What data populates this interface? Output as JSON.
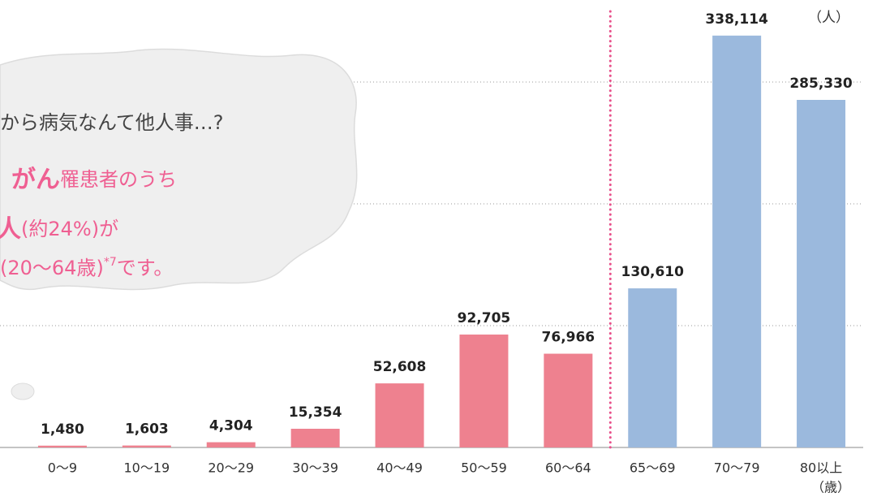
{
  "chart_data": {
    "type": "bar",
    "unit_label": "（人）",
    "x_unit_label": "（歳）",
    "categories": [
      "0〜9",
      "10〜19",
      "20〜29",
      "30〜39",
      "40〜49",
      "50〜59",
      "60〜64",
      "65〜69",
      "70〜79",
      "80以上"
    ],
    "values": [
      1480,
      1603,
      4304,
      15354,
      52608,
      92705,
      76966,
      130610,
      338114,
      285330
    ],
    "value_labels": [
      "1,480",
      "1,603",
      "4,304",
      "15,354",
      "52,608",
      "92,705",
      "76,966",
      "130,610",
      "338,114",
      "285,330"
    ],
    "colors": [
      "#ee818f",
      "#ee818f",
      "#ee818f",
      "#ee818f",
      "#ee818f",
      "#ee818f",
      "#ee818f",
      "#9bb9dd",
      "#9bb9dd",
      "#9bb9dd"
    ],
    "ylim": [
      0,
      367333
    ],
    "yticks": [
      100000,
      200000,
      300000
    ],
    "grid": true,
    "bubble": [
      [
        "から病気なんて他人事…?"
      ],
      [
        "がん",
        "罹患者のうち"
      ],
      [
        "人",
        "(約24%)が"
      ],
      [
        "(20〜64歳)",
        "*7",
        "です。"
      ]
    ]
  }
}
